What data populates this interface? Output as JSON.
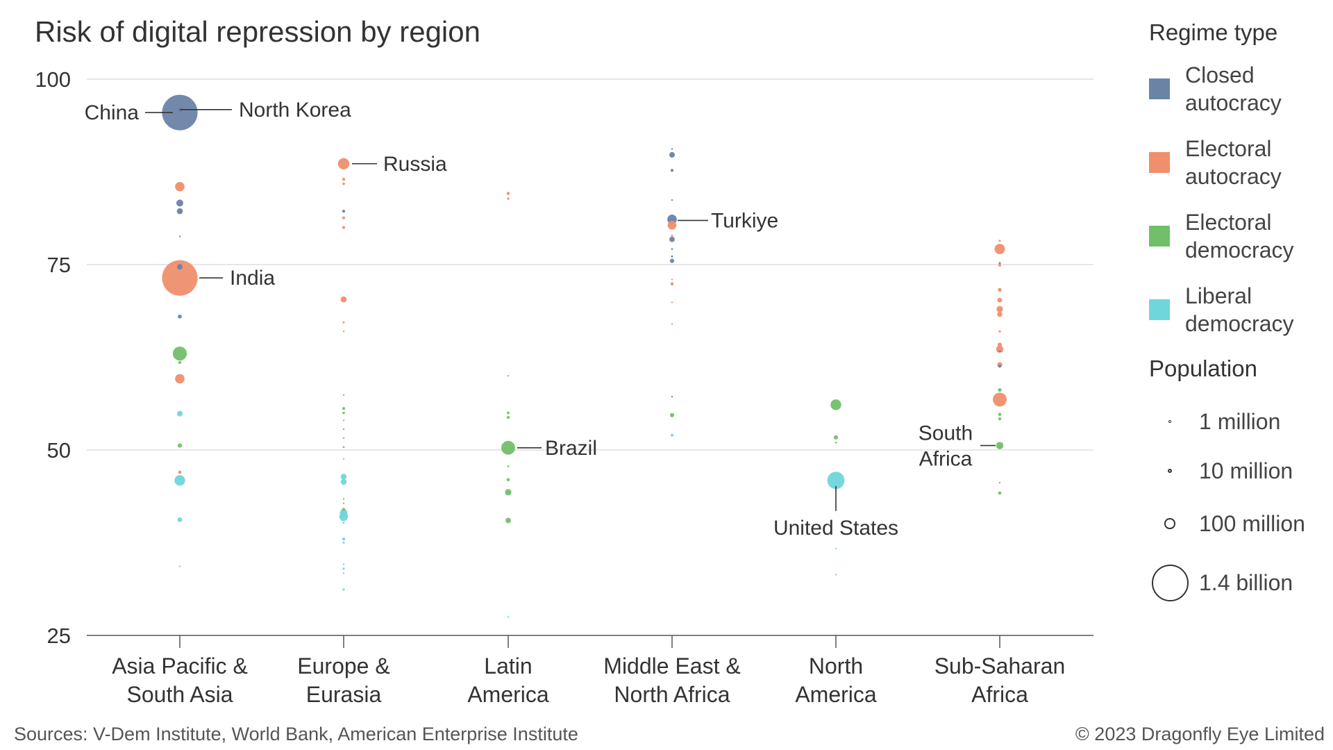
{
  "chart_data": {
    "type": "scatter",
    "title": "Risk of digital repression by region",
    "categories": [
      "Asia Pacific &\nSouth Asia",
      "Europe &\nEurasia",
      "Latin\nAmerica",
      "Middle East &\nNorth Africa",
      "North\nAmerica",
      "Sub-Saharan\nAfrica"
    ],
    "yticks": [
      100,
      75,
      50,
      25
    ],
    "ylim": [
      25,
      100
    ],
    "grid": true,
    "legend_placement": "right",
    "regime_types": [
      {
        "key": "closed",
        "label": "Closed autocracy",
        "color": "#6b83a6"
      },
      {
        "key": "electoral_autocracy",
        "label": "Electoral autocracy",
        "color": "#ef8f6c"
      },
      {
        "key": "electoral_democracy",
        "label": "Electoral democracy",
        "color": "#72bf6a"
      },
      {
        "key": "liberal",
        "label": "Liberal democracy",
        "color": "#6fd6dc"
      }
    ],
    "size_legend_title": "Population",
    "size_legend": [
      {
        "label": "1 million",
        "population": 1
      },
      {
        "label": "10 million",
        "population": 10
      },
      {
        "label": "100 million",
        "population": 100
      },
      {
        "label": "1.4 billion",
        "population": 1400
      }
    ],
    "points": [
      {
        "region": 0,
        "y": 95.5,
        "regime": "closed",
        "population": 1410,
        "label": "China"
      },
      {
        "region": 0,
        "y": 95.9,
        "regime": "closed",
        "population": 26,
        "label": "North Korea"
      },
      {
        "region": 0,
        "y": 85.5,
        "regime": "electoral_autocracy",
        "population": 100
      },
      {
        "region": 0,
        "y": 83.3,
        "regime": "closed",
        "population": 54
      },
      {
        "region": 0,
        "y": 82.2,
        "regime": "closed",
        "population": 40
      },
      {
        "region": 0,
        "y": 78.8,
        "regime": "closed",
        "population": 3
      },
      {
        "region": 0,
        "y": 73.2,
        "regime": "electoral_autocracy",
        "population": 1410,
        "label": "India"
      },
      {
        "region": 0,
        "y": 74.7,
        "regime": "closed",
        "population": 35
      },
      {
        "region": 0,
        "y": 68.0,
        "regime": "closed",
        "population": 17
      },
      {
        "region": 0,
        "y": 63.0,
        "regime": "electoral_democracy",
        "population": 220
      },
      {
        "region": 0,
        "y": 61.8,
        "regime": "electoral_democracy",
        "population": 10
      },
      {
        "region": 0,
        "y": 59.6,
        "regime": "electoral_autocracy",
        "population": 100
      },
      {
        "region": 0,
        "y": 54.9,
        "regime": "liberal",
        "population": 36
      },
      {
        "region": 0,
        "y": 50.6,
        "regime": "electoral_democracy",
        "population": 20
      },
      {
        "region": 0,
        "y": 47.0,
        "regime": "electoral_autocracy",
        "population": 12
      },
      {
        "region": 0,
        "y": 45.9,
        "regime": "liberal",
        "population": 125
      },
      {
        "region": 0,
        "y": 40.6,
        "regime": "liberal",
        "population": 25
      },
      {
        "region": 0,
        "y": 34.3,
        "regime": "liberal",
        "population": 3
      },
      {
        "region": 1,
        "y": 88.6,
        "regime": "electoral_autocracy",
        "population": 144,
        "label": "Russia"
      },
      {
        "region": 1,
        "y": 86.5,
        "regime": "electoral_autocracy",
        "population": 10
      },
      {
        "region": 1,
        "y": 85.9,
        "regime": "electoral_autocracy",
        "population": 7
      },
      {
        "region": 1,
        "y": 82.2,
        "regime": "closed",
        "population": 10
      },
      {
        "region": 1,
        "y": 81.3,
        "regime": "electoral_autocracy",
        "population": 9
      },
      {
        "region": 1,
        "y": 80.0,
        "regime": "electoral_autocracy",
        "population": 10
      },
      {
        "region": 1,
        "y": 70.3,
        "regime": "electoral_autocracy",
        "population": 40
      },
      {
        "region": 1,
        "y": 67.2,
        "regime": "electoral_autocracy",
        "population": 5
      },
      {
        "region": 1,
        "y": 66.0,
        "regime": "electoral_autocracy",
        "population": 3
      },
      {
        "region": 1,
        "y": 57.4,
        "regime": "electoral_democracy",
        "population": 3
      },
      {
        "region": 1,
        "y": 55.6,
        "regime": "electoral_democracy",
        "population": 9
      },
      {
        "region": 1,
        "y": 55.0,
        "regime": "electoral_democracy",
        "population": 7
      },
      {
        "region": 1,
        "y": 54.0,
        "regime": "electoral_autocracy",
        "population": 2
      },
      {
        "region": 1,
        "y": 52.8,
        "regime": "electoral_democracy",
        "population": 2
      },
      {
        "region": 1,
        "y": 51.6,
        "regime": "electoral_democracy",
        "population": 2
      },
      {
        "region": 1,
        "y": 50.4,
        "regime": "electoral_democracy",
        "population": 4
      },
      {
        "region": 1,
        "y": 48.8,
        "regime": "liberal",
        "population": 2
      },
      {
        "region": 1,
        "y": 46.4,
        "regime": "liberal",
        "population": 38
      },
      {
        "region": 1,
        "y": 45.7,
        "regime": "liberal",
        "population": 38
      },
      {
        "region": 1,
        "y": 43.4,
        "regime": "electoral_democracy",
        "population": 2
      },
      {
        "region": 1,
        "y": 42.8,
        "regime": "electoral_democracy",
        "population": 3
      },
      {
        "region": 1,
        "y": 42.0,
        "regime": "electoral_democracy",
        "population": 10
      },
      {
        "region": 1,
        "y": 41.5,
        "regime": "liberal",
        "population": 67
      },
      {
        "region": 1,
        "y": 41.0,
        "regime": "liberal",
        "population": 83
      },
      {
        "region": 1,
        "y": 40.2,
        "regime": "liberal",
        "population": 5
      },
      {
        "region": 1,
        "y": 38.0,
        "regime": "liberal",
        "population": 10
      },
      {
        "region": 1,
        "y": 37.5,
        "regime": "liberal",
        "population": 5
      },
      {
        "region": 1,
        "y": 34.6,
        "regime": "liberal",
        "population": 3
      },
      {
        "region": 1,
        "y": 34.0,
        "regime": "liberal",
        "population": 6
      },
      {
        "region": 1,
        "y": 33.4,
        "regime": "liberal",
        "population": 3
      },
      {
        "region": 1,
        "y": 31.2,
        "regime": "liberal",
        "population": 6
      },
      {
        "region": 2,
        "y": 84.6,
        "regime": "electoral_autocracy",
        "population": 11
      },
      {
        "region": 2,
        "y": 83.9,
        "regime": "electoral_autocracy",
        "population": 6
      },
      {
        "region": 2,
        "y": 60.0,
        "regime": "electoral_democracy",
        "population": 3
      },
      {
        "region": 2,
        "y": 55.0,
        "regime": "electoral_democracy",
        "population": 8
      },
      {
        "region": 2,
        "y": 54.4,
        "regime": "electoral_democracy",
        "population": 10
      },
      {
        "region": 2,
        "y": 50.3,
        "regime": "electoral_democracy",
        "population": 215,
        "label": "Brazil"
      },
      {
        "region": 2,
        "y": 49.8,
        "regime": "electoral_democracy",
        "population": 6
      },
      {
        "region": 2,
        "y": 47.8,
        "regime": "electoral_democracy",
        "population": 4
      },
      {
        "region": 2,
        "y": 46.0,
        "regime": "electoral_democracy",
        "population": 11
      },
      {
        "region": 2,
        "y": 44.3,
        "regime": "electoral_democracy",
        "population": 46
      },
      {
        "region": 2,
        "y": 40.5,
        "regime": "electoral_democracy",
        "population": 33
      },
      {
        "region": 2,
        "y": 27.5,
        "regime": "liberal",
        "population": 3
      },
      {
        "region": 3,
        "y": 90.6,
        "regime": "closed",
        "population": 3
      },
      {
        "region": 3,
        "y": 89.8,
        "regime": "closed",
        "population": 35
      },
      {
        "region": 3,
        "y": 87.7,
        "regime": "closed",
        "population": 10
      },
      {
        "region": 3,
        "y": 83.7,
        "regime": "closed",
        "population": 2
      },
      {
        "region": 3,
        "y": 81.1,
        "regime": "closed",
        "population": 100
      },
      {
        "region": 3,
        "y": 80.3,
        "regime": "electoral_autocracy",
        "population": 85,
        "label": "Turkiye"
      },
      {
        "region": 3,
        "y": 78.9,
        "regime": "electoral_autocracy",
        "population": 5
      },
      {
        "region": 3,
        "y": 78.4,
        "regime": "closed",
        "population": 34
      },
      {
        "region": 3,
        "y": 77.1,
        "regime": "closed",
        "population": 4
      },
      {
        "region": 3,
        "y": 76.1,
        "regime": "closed",
        "population": 5
      },
      {
        "region": 3,
        "y": 75.5,
        "regime": "closed",
        "population": 20
      },
      {
        "region": 3,
        "y": 73.0,
        "regime": "electoral_autocracy",
        "population": 3
      },
      {
        "region": 3,
        "y": 72.4,
        "regime": "electoral_autocracy",
        "population": 11
      },
      {
        "region": 3,
        "y": 69.9,
        "regime": "electoral_autocracy",
        "population": 2
      },
      {
        "region": 3,
        "y": 67.0,
        "regime": "electoral_autocracy",
        "population": 2
      },
      {
        "region": 3,
        "y": 57.2,
        "regime": "closed",
        "population": 3
      },
      {
        "region": 3,
        "y": 54.7,
        "regime": "electoral_democracy",
        "population": 20
      },
      {
        "region": 3,
        "y": 52.0,
        "regime": "liberal",
        "population": 9
      },
      {
        "region": 4,
        "y": 56.1,
        "regime": "electoral_democracy",
        "population": 128
      },
      {
        "region": 4,
        "y": 51.7,
        "regime": "electoral_democracy",
        "population": 20
      },
      {
        "region": 4,
        "y": 51.0,
        "regime": "electoral_democracy",
        "population": 4
      },
      {
        "region": 4,
        "y": 45.9,
        "regime": "liberal",
        "population": 333,
        "label": "United States"
      },
      {
        "region": 4,
        "y": 36.7,
        "regime": "liberal",
        "population": 2
      },
      {
        "region": 4,
        "y": 33.2,
        "regime": "liberal",
        "population": 2
      },
      {
        "region": 5,
        "y": 78.2,
        "regime": "electoral_autocracy",
        "population": 5
      },
      {
        "region": 5,
        "y": 77.1,
        "regime": "electoral_autocracy",
        "population": 120
      },
      {
        "region": 5,
        "y": 75.2,
        "regime": "closed",
        "population": 5
      },
      {
        "region": 5,
        "y": 74.9,
        "regime": "electoral_autocracy",
        "population": 8
      },
      {
        "region": 5,
        "y": 71.6,
        "regime": "electoral_autocracy",
        "population": 16
      },
      {
        "region": 5,
        "y": 70.2,
        "regime": "electoral_autocracy",
        "population": 25
      },
      {
        "region": 5,
        "y": 69.0,
        "regime": "electoral_autocracy",
        "population": 45
      },
      {
        "region": 5,
        "y": 68.3,
        "regime": "electoral_autocracy",
        "population": 30
      },
      {
        "region": 5,
        "y": 66.0,
        "regime": "electoral_autocracy",
        "population": 6
      },
      {
        "region": 5,
        "y": 64.2,
        "regime": "electoral_autocracy",
        "population": 20
      },
      {
        "region": 5,
        "y": 63.6,
        "regime": "electoral_autocracy",
        "population": 60
      },
      {
        "region": 5,
        "y": 63.3,
        "regime": "closed",
        "population": 5
      },
      {
        "region": 5,
        "y": 61.5,
        "regime": "electoral_autocracy",
        "population": 30
      },
      {
        "region": 5,
        "y": 61.3,
        "regime": "closed",
        "population": 10
      },
      {
        "region": 5,
        "y": 58.1,
        "regime": "electoral_democracy",
        "population": 15
      },
      {
        "region": 5,
        "y": 56.8,
        "regime": "electoral_autocracy",
        "population": 215
      },
      {
        "region": 5,
        "y": 54.8,
        "regime": "electoral_democracy",
        "population": 12
      },
      {
        "region": 5,
        "y": 54.2,
        "regime": "electoral_democracy",
        "population": 10
      },
      {
        "region": 5,
        "y": 50.6,
        "regime": "electoral_democracy",
        "population": 60,
        "label": "South Africa"
      },
      {
        "region": 5,
        "y": 45.6,
        "regime": "electoral_democracy",
        "population": 3
      },
      {
        "region": 5,
        "y": 44.2,
        "regime": "electoral_democracy",
        "population": 12
      }
    ],
    "annotations": [
      {
        "text": "China",
        "region": 0,
        "y": 95.5
      },
      {
        "text": "North Korea",
        "region": 0,
        "y": 95.9
      },
      {
        "text": "India",
        "region": 0,
        "y": 73.2
      },
      {
        "text": "Russia",
        "region": 1,
        "y": 88.6
      },
      {
        "text": "Brazil",
        "region": 2,
        "y": 50.3
      },
      {
        "text": "Turkiye",
        "region": 3,
        "y": 80.3
      },
      {
        "text": "United States",
        "region": 4,
        "y": 45.9
      },
      {
        "text": "South\nAfrica",
        "region": 5,
        "y": 50.6
      }
    ]
  },
  "legend": {
    "title": "Regime type",
    "items": [
      {
        "label": "Closed autocracy",
        "color": "#6b83a6"
      },
      {
        "label": "Electoral autocracy",
        "color": "#ef8f6c"
      },
      {
        "label": "Electoral democracy",
        "color": "#72bf6a"
      },
      {
        "label": "Liberal democracy",
        "color": "#6fd6dc"
      }
    ],
    "population_title": "Population",
    "population_items": [
      {
        "label": "1 million",
        "population": 1
      },
      {
        "label": "10 million",
        "population": 10
      },
      {
        "label": "100 million",
        "population": 100
      },
      {
        "label": "1.4 billion",
        "population": 1400
      }
    ]
  },
  "footer": {
    "source": "Sources: V-Dem Institute, World Bank, American Enterprise Institute",
    "copyright": "© 2023 Dragonfly Eye Limited"
  }
}
